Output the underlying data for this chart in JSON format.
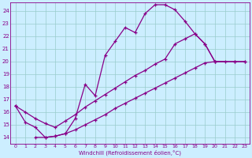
{
  "xlabel": "Windchill (Refroidissement éolien,°C)",
  "bg_color": "#cceeff",
  "grid_color": "#99cccc",
  "line_color": "#880088",
  "xlim": [
    -0.5,
    23.5
  ],
  "ylim": [
    13.5,
    24.7
  ],
  "yticks": [
    14,
    15,
    16,
    17,
    18,
    19,
    20,
    21,
    22,
    23,
    24
  ],
  "xticks": [
    0,
    1,
    2,
    3,
    4,
    5,
    6,
    7,
    8,
    9,
    10,
    11,
    12,
    13,
    14,
    15,
    16,
    17,
    18,
    19,
    20,
    21,
    22,
    23
  ],
  "line1_x": [
    0,
    1,
    2,
    3,
    4,
    5,
    6,
    7,
    8,
    9,
    10,
    11,
    12,
    13,
    14,
    15,
    16,
    17,
    18,
    19,
    20,
    21
  ],
  "line1_y": [
    16.5,
    15.2,
    14.8,
    14.0,
    14.1,
    14.3,
    15.5,
    18.2,
    17.3,
    20.5,
    21.6,
    22.7,
    22.3,
    23.8,
    24.5,
    24.5,
    24.1,
    23.2,
    22.2,
    21.4,
    20.0,
    20.0
  ],
  "line2_x": [
    0,
    1,
    2,
    3,
    4,
    5,
    6,
    7,
    8,
    9,
    10,
    11,
    12,
    13,
    14,
    15,
    16,
    17,
    18,
    19,
    20,
    22,
    23
  ],
  "line2_y": [
    16.5,
    16.0,
    15.5,
    15.1,
    14.8,
    15.3,
    15.8,
    16.4,
    16.9,
    17.4,
    17.9,
    18.4,
    18.9,
    19.3,
    19.8,
    20.2,
    21.4,
    21.8,
    22.2,
    21.4,
    20.0,
    20.0,
    20.0
  ],
  "line3_x": [
    2,
    3,
    4,
    5,
    6,
    7,
    8,
    9,
    10,
    11,
    12,
    13,
    14,
    15,
    16,
    17,
    18,
    19,
    20,
    22,
    23
  ],
  "line3_y": [
    14.0,
    14.0,
    14.1,
    14.3,
    14.6,
    15.0,
    15.4,
    15.8,
    16.3,
    16.7,
    17.1,
    17.5,
    17.9,
    18.3,
    18.7,
    19.1,
    19.5,
    19.9,
    20.0,
    20.0,
    20.0
  ]
}
